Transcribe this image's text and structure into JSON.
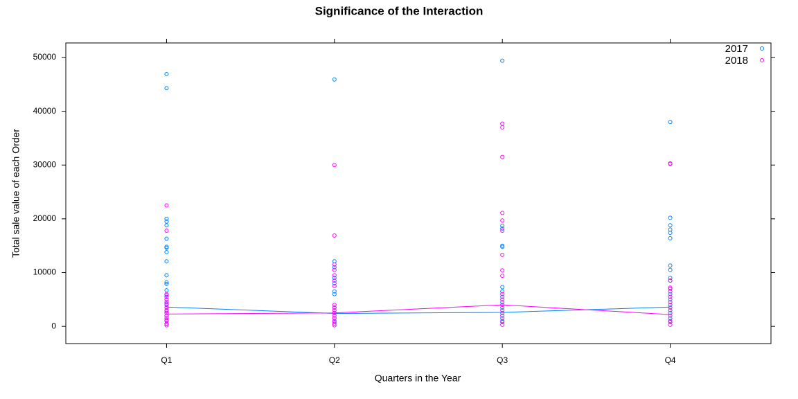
{
  "chart_data": {
    "type": "strip",
    "title": "Significance of the Interaction",
    "xlabel": "Quarters in the Year",
    "ylabel": "Total sale value of each Order",
    "categories": [
      "Q1",
      "Q2",
      "Q3",
      "Q4"
    ],
    "ylim": [
      -3200,
      52700
    ],
    "yticks": [
      0,
      10000,
      20000,
      30000,
      40000,
      50000
    ],
    "legend": "top-right",
    "series": [
      {
        "name": "2017",
        "color": "#0080ff",
        "values": [
          [
            46900,
            44300,
            20000,
            19500,
            18800,
            16300,
            14800,
            14600,
            13800,
            12100,
            9500,
            8200,
            7900,
            6700,
            5800,
            5000,
            4200,
            3500,
            2800,
            2000,
            1200,
            500
          ],
          [
            45900,
            12100,
            11000,
            9000,
            8000,
            6500,
            6000,
            3500,
            2500,
            1500,
            800
          ],
          [
            49400,
            18700,
            18200,
            15000,
            14800,
            7300,
            6500,
            5500,
            4500,
            3500,
            2500,
            1500,
            800
          ],
          [
            38000,
            20200,
            18800,
            18000,
            17400,
            16400,
            11300,
            10500,
            9000,
            8500,
            6000,
            5000,
            4000,
            3000,
            2000,
            1000
          ]
        ],
        "means": [
          3600,
          2400,
          2600,
          3600
        ]
      },
      {
        "name": "2018",
        "color": "#ff00ff",
        "values": [
          [
            22500,
            17800,
            6000,
            5500,
            5000,
            4500,
            4000,
            3500,
            3000,
            2500,
            2000,
            1500,
            1000,
            500,
            200
          ],
          [
            30000,
            16900,
            11500,
            10500,
            9500,
            8500,
            7500,
            4000,
            3500,
            3000,
            2500,
            2000,
            1500,
            1000,
            500,
            200
          ],
          [
            37700,
            37000,
            31500,
            21100,
            19700,
            17800,
            13300,
            10400,
            9400,
            6000,
            5000,
            4000,
            3000,
            2000,
            1000,
            300
          ],
          [
            30300,
            30200,
            8500,
            7200,
            7000,
            6500,
            5500,
            4500,
            3500,
            2500,
            1500,
            800,
            300
          ]
        ],
        "means": [
          2300,
          2500,
          4000,
          2200
        ]
      }
    ]
  }
}
